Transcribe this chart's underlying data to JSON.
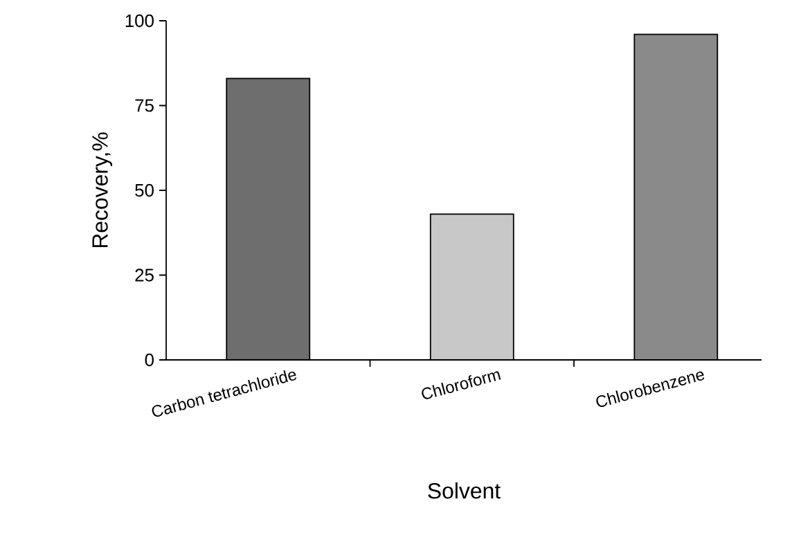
{
  "chart_data": {
    "type": "bar",
    "xlabel": "Solvent",
    "ylabel": "Recovery,%",
    "categories": [
      "Carbon tetrachloride",
      "Chloroform",
      "Chlorobenzene"
    ],
    "values": [
      83,
      43,
      96
    ],
    "colors": [
      "#6e6e6e",
      "#c8c8c8",
      "#8a8a8a"
    ],
    "ylim": [
      0,
      100
    ],
    "yticks": [
      0,
      25,
      50,
      75,
      100
    ],
    "grid": false
  }
}
